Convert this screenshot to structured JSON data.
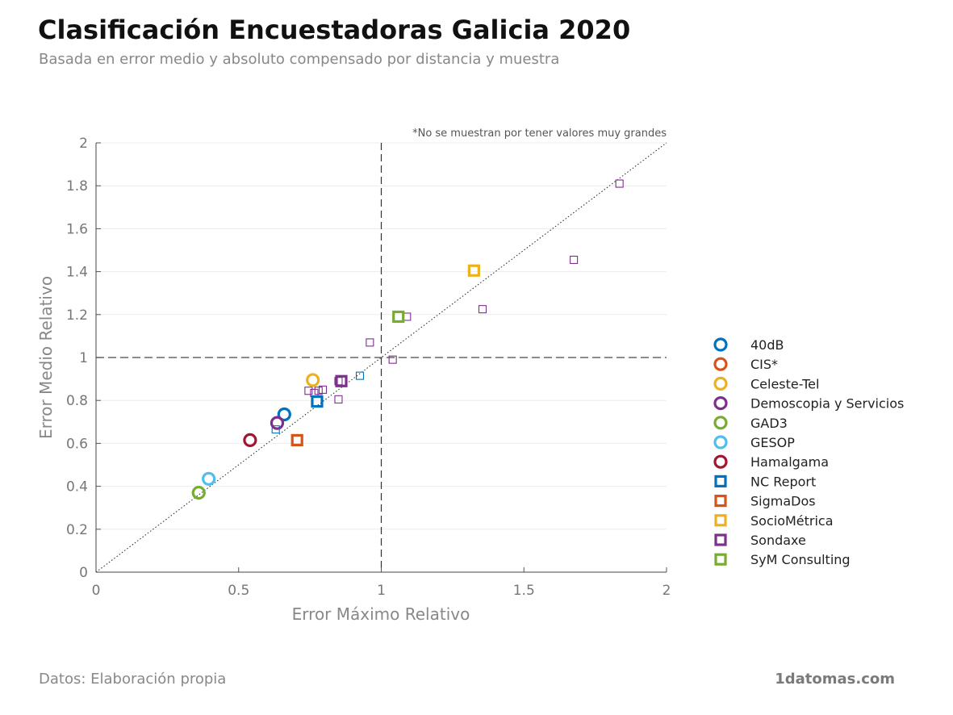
{
  "header": {
    "title": "Clasificación Encuestadoras Galicia 2020",
    "subtitle": "Basada en error medio y absoluto compensado por distancia y muestra"
  },
  "footer": {
    "source": "Datos: Elaboración propia",
    "brand": "1datomas.com"
  },
  "chart_data": {
    "type": "scatter",
    "xlabel": "Error Máximo Relativo",
    "ylabel": "Error Medio Relativo",
    "xlim": [
      0,
      2
    ],
    "ylim": [
      0,
      2
    ],
    "x_ticks": [
      "0",
      "0.5",
      "1",
      "1.5",
      "2"
    ],
    "y_ticks": [
      "0",
      "0.2",
      "0.4",
      "0.6",
      "0.8",
      "1",
      "1.2",
      "1.4",
      "1.6",
      "1.8",
      "2"
    ],
    "grid": true,
    "annotation": "*No se muestran por tener valores muy grandes",
    "reference_lines": {
      "x": 1,
      "y": 1,
      "diagonal": true
    },
    "legend_position": "right",
    "series": [
      {
        "name": "40dB",
        "marker": "circle",
        "color": "#0072BD",
        "main": [
          0.66,
          0.735
        ],
        "others": []
      },
      {
        "name": "CIS*",
        "marker": "circle",
        "color": "#D95319",
        "main": null,
        "others": []
      },
      {
        "name": "Celeste-Tel",
        "marker": "circle",
        "color": "#EDB120",
        "main": [
          0.76,
          0.895
        ],
        "others": []
      },
      {
        "name": "Demoscopia y Servicios",
        "marker": "circle",
        "color": "#7E2F8E",
        "main": [
          0.635,
          0.695
        ],
        "others": []
      },
      {
        "name": "GAD3",
        "marker": "circle",
        "color": "#77AC30",
        "main": [
          0.36,
          0.37
        ],
        "others": []
      },
      {
        "name": "GESOP",
        "marker": "circle",
        "color": "#4DBEEE",
        "main": [
          0.395,
          0.435
        ],
        "others": []
      },
      {
        "name": "Hamalgama",
        "marker": "circle",
        "color": "#A2142F",
        "main": [
          0.54,
          0.615
        ],
        "others": []
      },
      {
        "name": "NC Report",
        "marker": "square",
        "color": "#0072BD",
        "main": [
          0.775,
          0.795
        ],
        "others": [
          [
            0.63,
            0.665
          ],
          [
            0.925,
            0.915
          ]
        ]
      },
      {
        "name": "SigmaDos",
        "marker": "square",
        "color": "#D95319",
        "main": [
          0.705,
          0.615
        ],
        "others": []
      },
      {
        "name": "SocioMétrica",
        "marker": "square",
        "color": "#EDB120",
        "main": [
          1.325,
          1.405
        ],
        "others": []
      },
      {
        "name": "Sondaxe",
        "marker": "square",
        "color": "#7E2F8E",
        "main": [
          0.86,
          0.89
        ],
        "others": [
          [
            1.835,
            1.81
          ],
          [
            1.675,
            1.455
          ],
          [
            1.355,
            1.225
          ],
          [
            1.09,
            1.19
          ],
          [
            0.96,
            1.07
          ],
          [
            1.04,
            0.99
          ],
          [
            0.745,
            0.845
          ],
          [
            0.765,
            0.835
          ],
          [
            0.78,
            0.845
          ],
          [
            0.795,
            0.85
          ],
          [
            0.85,
            0.805
          ],
          [
            0.85,
            0.89
          ]
        ]
      },
      {
        "name": "SyM Consulting",
        "marker": "square",
        "color": "#77AC30",
        "main": [
          1.06,
          1.19
        ],
        "others": []
      }
    ]
  }
}
